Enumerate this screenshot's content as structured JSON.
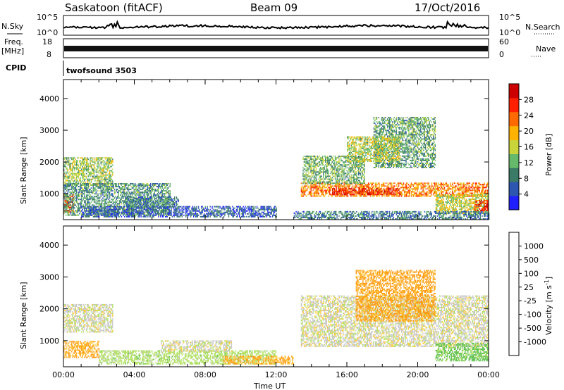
{
  "header": {
    "station": "Saskatoon (fitACF)",
    "beam": "Beam 09",
    "date": "17/Oct/2016"
  },
  "top_panels": {
    "nsky_label": "N.Sky",
    "nsky_ticks": [
      "10^5",
      "10^0"
    ],
    "nsearch_label": "N.Search",
    "nsearch_ticks": [
      "10^5",
      "10^0"
    ],
    "freq_label": "Freq.",
    "freq_unit": "[MHz]",
    "freq_ticks": [
      "18",
      "8"
    ],
    "nave_label": "Nave",
    "nave_ticks": [
      "60",
      "0"
    ],
    "cpid_label": "CPID",
    "cpid_value": "twofsound 3503"
  },
  "chart_data": [
    {
      "type": "heatmap",
      "name": "power",
      "ylabel": "Slant Range [km]",
      "xlabel": "Time UT",
      "x_range_hours": [
        0,
        24
      ],
      "ylim": [
        180,
        4600
      ],
      "y_ticks": [
        "1000",
        "2000",
        "3000",
        "4000"
      ],
      "x_ticks": [
        "00:00",
        "04:00",
        "08:00",
        "12:00",
        "16:00",
        "20:00",
        "00:00"
      ],
      "colorbar_label": "Power [dB]",
      "colorbar_ticks": [
        "4",
        "8",
        "12",
        "16",
        "20",
        "24",
        "28"
      ],
      "colorbar_colors": [
        "#2020ff",
        "#2c56b0",
        "#3a7a66",
        "#66b86a",
        "#c8d43a",
        "#ffb200",
        "#ff6a00",
        "#ff2000",
        "#cc0000"
      ],
      "color_range": [
        0,
        32
      ],
      "regions": [
        {
          "t": [
            0.0,
            2.8
          ],
          "r": [
            1250,
            2150
          ],
          "level": 14
        },
        {
          "t": [
            0.0,
            0.6
          ],
          "r": [
            400,
            950
          ],
          "level": 26
        },
        {
          "t": [
            0.0,
            6.0
          ],
          "r": [
            300,
            1300
          ],
          "level": 10
        },
        {
          "t": [
            1.0,
            12.0
          ],
          "r": [
            250,
            600
          ],
          "level": 6
        },
        {
          "t": [
            3.5,
            6.5
          ],
          "r": [
            550,
            900
          ],
          "level": 8
        },
        {
          "t": [
            13.4,
            24.0
          ],
          "r": [
            900,
            1350
          ],
          "level": 22
        },
        {
          "t": [
            15.0,
            19.0
          ],
          "r": [
            950,
            1150
          ],
          "level": 27
        },
        {
          "t": [
            13.5,
            17.0
          ],
          "r": [
            1300,
            2200
          ],
          "level": 12
        },
        {
          "t": [
            17.5,
            21.0
          ],
          "r": [
            1800,
            3400
          ],
          "level": 11
        },
        {
          "t": [
            16.0,
            19.0
          ],
          "r": [
            2000,
            2800
          ],
          "level": 15
        },
        {
          "t": [
            21.0,
            24.0
          ],
          "r": [
            350,
            950
          ],
          "level": 16
        },
        {
          "t": [
            23.2,
            24.0
          ],
          "r": [
            400,
            800
          ],
          "level": 27
        },
        {
          "t": [
            13.0,
            24.0
          ],
          "r": [
            180,
            450
          ],
          "level": 8
        }
      ]
    },
    {
      "type": "heatmap",
      "name": "velocity",
      "ylabel": "Slant Range [km]",
      "xlabel": "Time UT",
      "x_range_hours": [
        0,
        24
      ],
      "ylim": [
        180,
        4600
      ],
      "y_ticks": [
        "1000",
        "2000",
        "3000",
        "4000"
      ],
      "x_ticks": [
        "00:00",
        "04:00",
        "08:00",
        "12:00",
        "16:00",
        "20:00",
        "00:00"
      ],
      "colorbar_label": "Velocity [m s^-1]",
      "colorbar_ticks": [
        "1000",
        "500",
        "100",
        "25",
        "-25",
        "-100",
        "-500",
        "-1000"
      ],
      "colorbar_colors": [
        "#2040c0",
        "#2c7a50",
        "#60c050",
        "#b0e060",
        "#c8c8c8",
        "#ffcc40",
        "#ff9a10",
        "#ff5a00",
        "#ff0000"
      ],
      "regions": [
        {
          "t": [
            0.0,
            2.8
          ],
          "r": [
            1250,
            2150
          ],
          "value": 0
        },
        {
          "t": [
            0.0,
            2.0
          ],
          "r": [
            450,
            950
          ],
          "value": -110
        },
        {
          "t": [
            2.0,
            12.0
          ],
          "r": [
            250,
            700
          ],
          "value": 60
        },
        {
          "t": [
            5.5,
            9.5
          ],
          "r": [
            650,
            1000
          ],
          "value": 0
        },
        {
          "t": [
            13.4,
            24.0
          ],
          "r": [
            800,
            2400
          ],
          "value": 0
        },
        {
          "t": [
            16.5,
            21.0
          ],
          "r": [
            1600,
            3200
          ],
          "value": -120
        },
        {
          "t": [
            21.0,
            24.0
          ],
          "r": [
            350,
            900
          ],
          "value": 120
        },
        {
          "t": [
            9.0,
            13.0
          ],
          "r": [
            250,
            500
          ],
          "value": -110
        }
      ]
    }
  ]
}
